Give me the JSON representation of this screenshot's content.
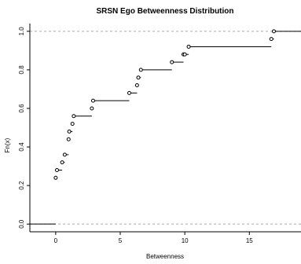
{
  "chart_data": {
    "type": "line",
    "subtype": "ecdf-step",
    "title": "SRSN Ego Betweenness Distribution",
    "xlabel": "Betweenness",
    "ylabel": "Fn(x)",
    "xlim": [
      -2,
      19
    ],
    "ylim": [
      -0.04,
      1.04
    ],
    "x_ticks": [
      0,
      5,
      10,
      15
    ],
    "x_tick_labels": [
      "0",
      "5",
      "10",
      "15"
    ],
    "y_ticks": [
      0.0,
      0.2,
      0.4,
      0.6,
      0.8,
      1.0
    ],
    "y_tick_labels": [
      "0.0",
      "0.2",
      "0.4",
      "0.6",
      "0.8",
      "1.0"
    ],
    "reference_lines_y": [
      0,
      1
    ],
    "grid": false,
    "series": [
      {
        "points": [
          {
            "x": 0.0,
            "y": 0.24
          },
          {
            "x": 0.1,
            "y": 0.28
          },
          {
            "x": 0.5,
            "y": 0.32
          },
          {
            "x": 0.7,
            "y": 0.36
          },
          {
            "x": 1.0,
            "y": 0.44
          },
          {
            "x": 1.05,
            "y": 0.48
          },
          {
            "x": 1.3,
            "y": 0.52
          },
          {
            "x": 1.4,
            "y": 0.56
          },
          {
            "x": 2.8,
            "y": 0.6
          },
          {
            "x": 2.9,
            "y": 0.64
          },
          {
            "x": 5.7,
            "y": 0.68
          },
          {
            "x": 6.3,
            "y": 0.72
          },
          {
            "x": 6.4,
            "y": 0.76
          },
          {
            "x": 6.6,
            "y": 0.8
          },
          {
            "x": 9.0,
            "y": 0.84
          },
          {
            "x": 9.9,
            "y": 0.88
          },
          {
            "x": 10.0,
            "y": 0.88
          },
          {
            "x": 10.3,
            "y": 0.92
          },
          {
            "x": 16.7,
            "y": 0.96
          },
          {
            "x": 16.9,
            "y": 1.0
          }
        ]
      }
    ]
  }
}
